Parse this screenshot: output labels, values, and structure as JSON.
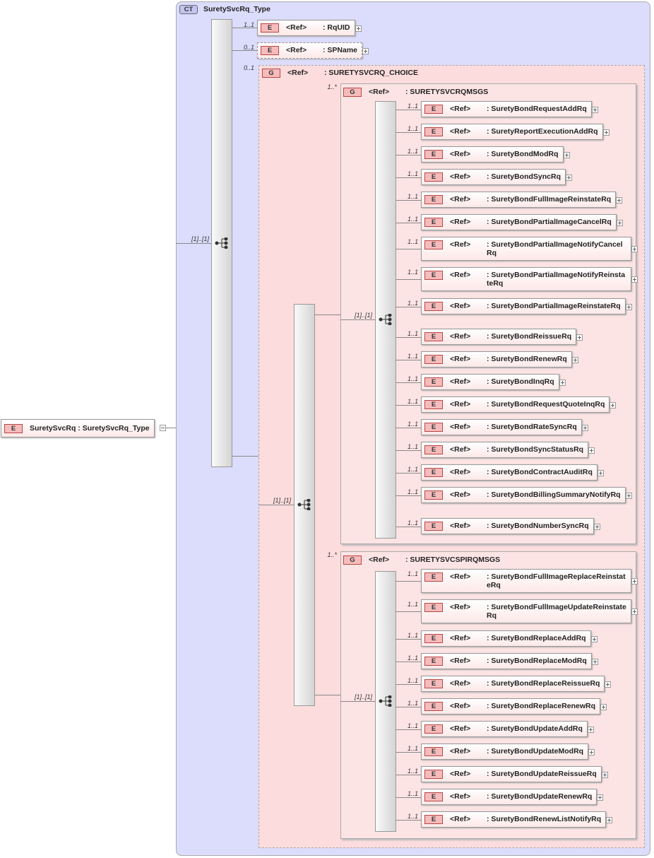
{
  "labels": {
    "element_badge": "E",
    "group_badge": "G",
    "type_badge": "CT",
    "ref": "<Ref>"
  },
  "root": {
    "label": "SuretySvcRq : SuretySvcRq_Type"
  },
  "complex_type": {
    "name": "SuretySvcRq_Type",
    "sequence_cardinality": "[1]..[1]",
    "elements": [
      {
        "cardinality": "1..1",
        "name": ": RqUID"
      },
      {
        "cardinality": "0..1",
        "name": ": SPName"
      }
    ],
    "choice": {
      "cardinality": "0..1",
      "name": ": SURETYSVCRQ_CHOICE",
      "choice_cardinality": "[1]..[1]",
      "groups": [
        {
          "cardinality": "1..*",
          "name": ": SURETYSVCRQMSGS",
          "sequence_cardinality": "[1]..[1]",
          "elements": [
            {
              "cardinality": "1..1",
              "name": ": SuretyBondRequestAddRq"
            },
            {
              "cardinality": "1..1",
              "name": ": SuretyReportExecutionAddRq"
            },
            {
              "cardinality": "1..1",
              "name": ": SuretyBondModRq"
            },
            {
              "cardinality": "1..1",
              "name": ": SuretyBondSyncRq"
            },
            {
              "cardinality": "1..1",
              "name": ": SuretyBondFullImageReinstateRq"
            },
            {
              "cardinality": "1..1",
              "name": ": SuretyBondPartialImageCancelRq"
            },
            {
              "cardinality": "1..1",
              "name": ": SuretyBondPartialImageNotifyCancelRq"
            },
            {
              "cardinality": "1..1",
              "name": ": SuretyBondPartialImageNotifyReinstateRq"
            },
            {
              "cardinality": "1..1",
              "name": ": SuretyBondPartialImageReinstateRq"
            },
            {
              "cardinality": "1..1",
              "name": ": SuretyBondReissueRq"
            },
            {
              "cardinality": "1..1",
              "name": ": SuretyBondRenewRq"
            },
            {
              "cardinality": "1..1",
              "name": ": SuretyBondInqRq"
            },
            {
              "cardinality": "1..1",
              "name": ": SuretyBondRequestQuoteInqRq"
            },
            {
              "cardinality": "1..1",
              "name": ": SuretyBondRateSyncRq"
            },
            {
              "cardinality": "1..1",
              "name": ": SuretyBondSyncStatusRq"
            },
            {
              "cardinality": "1..1",
              "name": ": SuretyBondContractAuditRq"
            },
            {
              "cardinality": "1..1",
              "name": ": SuretyBondBillingSummaryNotifyRq"
            },
            {
              "cardinality": "1..1",
              "name": ": SuretyBondNumberSyncRq"
            }
          ]
        },
        {
          "cardinality": "1..*",
          "name": ": SURETYSVCSPIRQMSGS",
          "sequence_cardinality": "[1]..[1]",
          "elements": [
            {
              "cardinality": "1..1",
              "name": ": SuretyBondFullImageReplaceReinstateRq"
            },
            {
              "cardinality": "1..1",
              "name": ": SuretyBondFullImageUpdateReinstateRq"
            },
            {
              "cardinality": "1..1",
              "name": ": SuretyBondReplaceAddRq"
            },
            {
              "cardinality": "1..1",
              "name": ": SuretyBondReplaceModRq"
            },
            {
              "cardinality": "1..1",
              "name": ": SuretyBondReplaceReissueRq"
            },
            {
              "cardinality": "1..1",
              "name": ": SuretyBondReplaceRenewRq"
            },
            {
              "cardinality": "1..1",
              "name": ": SuretyBondUpdateAddRq"
            },
            {
              "cardinality": "1..1",
              "name": ": SuretyBondUpdateModRq"
            },
            {
              "cardinality": "1..1",
              "name": ": SuretyBondUpdateReissueRq"
            },
            {
              "cardinality": "1..1",
              "name": ": SuretyBondUpdateRenewRq"
            },
            {
              "cardinality": "1..1",
              "name": ": SuretyBondRenewListNotifyRq"
            }
          ]
        }
      ]
    }
  }
}
